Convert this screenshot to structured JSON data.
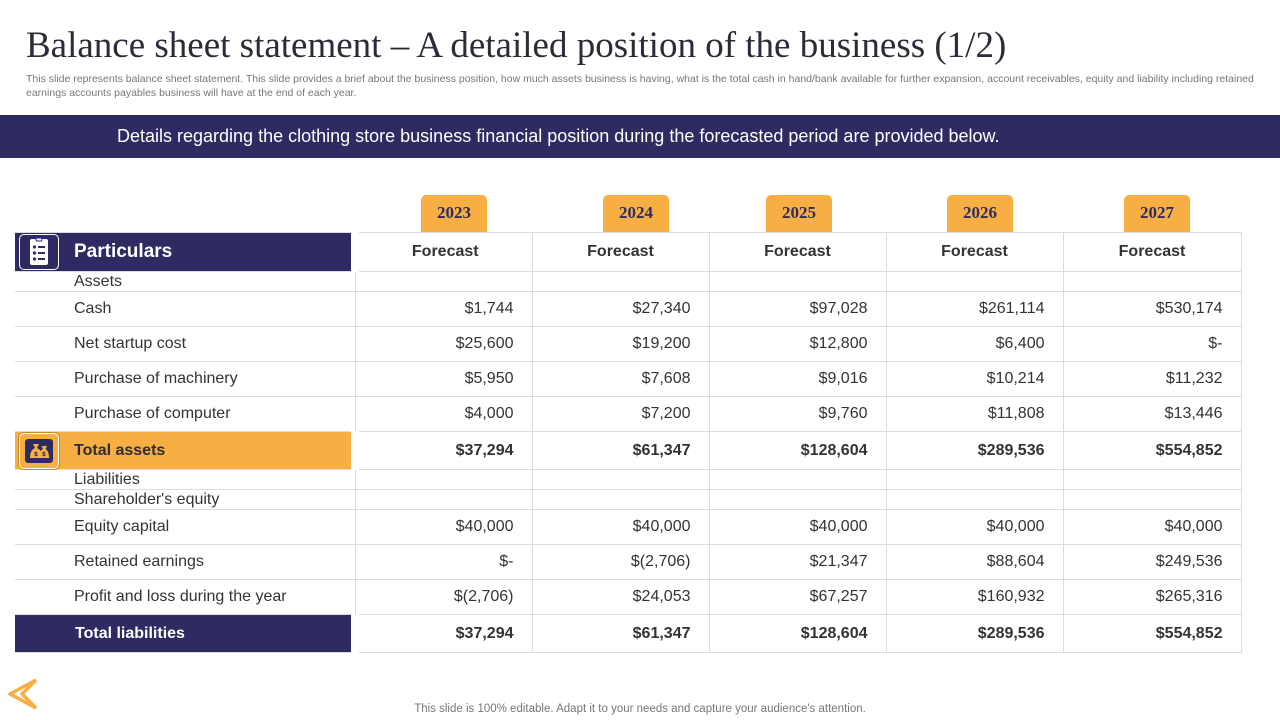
{
  "title": "Balance sheet statement – A detailed position of the business (1/2)",
  "subtitle": "This slide represents balance sheet statement. This slide provides a brief about the business position, how much assets business is having, what is the total cash in hand/bank available for further expansion, account receivables, equity and liability including retained earnings accounts payables business will have at the end of each year.",
  "banner": "Details regarding the clothing store business financial position during the forecasted period are provided below.",
  "years": [
    "2023",
    "2024",
    "2025",
    "2026",
    "2027"
  ],
  "table": {
    "header": "Particulars",
    "forecast": [
      "Forecast",
      "Forecast",
      "Forecast",
      "Forecast",
      "Forecast"
    ],
    "assets_label": "Assets",
    "cash": {
      "label": "Cash",
      "values": [
        "$1,744",
        "$27,340",
        "$97,028",
        "$261,114",
        "$530,174"
      ]
    },
    "net_startup_cost": {
      "label": "Net startup  cost",
      "values": [
        "$25,600",
        "$19,200",
        "$12,800",
        "$6,400",
        "$-"
      ]
    },
    "purchase_machinery": {
      "label": "Purchase of machinery",
      "values": [
        "$5,950",
        "$7,608",
        "$9,016",
        "$10,214",
        "$11,232"
      ]
    },
    "purchase_computer": {
      "label": "Purchase of computer",
      "values": [
        "$4,000",
        "$7,200",
        "$9,760",
        "$11,808",
        "$13,446"
      ]
    },
    "total_assets": {
      "label": "Total assets",
      "values": [
        "$37,294",
        "$61,347",
        "$128,604",
        "$289,536",
        "$554,852"
      ]
    },
    "liabilities_label": "Liabilities",
    "equity_label": "Shareholder's equity",
    "equity_capital": {
      "label": "Equity capital",
      "values": [
        "$40,000",
        "$40,000",
        "$40,000",
        "$40,000",
        "$40,000"
      ]
    },
    "retained_earnings": {
      "label": "Retained earnings",
      "values": [
        "$-",
        "$(2,706)",
        "$21,347",
        "$88,604",
        "$249,536"
      ]
    },
    "profit_loss": {
      "label": "Profit and loss during the year",
      "values": [
        "$(2,706)",
        "$24,053",
        "$67,257",
        "$160,932",
        "$265,316"
      ]
    },
    "total_liabilities": {
      "label": "Total liabilities",
      "values": [
        "$37,294",
        "$61,347",
        "$128,604",
        "$289,536",
        "$554,852"
      ]
    }
  },
  "footer": "This slide is 100% editable. Adapt it to your needs and capture your audience's attention.",
  "icons": {
    "header": "checklist-icon",
    "total_assets": "money-bag-icon",
    "nav": "back-arrow-icon"
  },
  "colors": {
    "navy": "#2e2b63",
    "orange": "#f7ae42"
  }
}
